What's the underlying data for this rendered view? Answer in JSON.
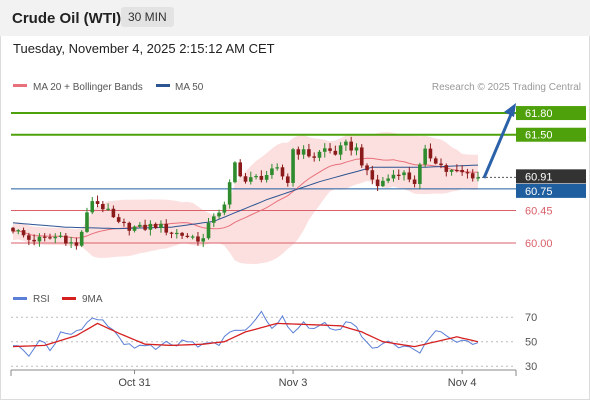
{
  "header": {
    "instrument": "Crude Oil (WTI)",
    "timeframe": "30 MIN"
  },
  "timestamp": "Tuesday, November 4, 2025 2:15:12 AM CET",
  "source": "Research © 2025 Trading Central",
  "colors": {
    "bull": "#2e8b2e",
    "bear": "#8b1a1a",
    "ma20": "#e8707a",
    "band": "#fbd7d7",
    "ma50": "#2c5592",
    "resistance": "#4ea10a",
    "support": "#d9606a",
    "pivot": "#1f5e9f",
    "current": "#333333",
    "rsi": "#5b7fd6",
    "rsi_ma": "#d62020",
    "arrow": "#2a61a8"
  },
  "chart_data": [
    {
      "type": "candlestick",
      "legend": [
        {
          "name": "MA 20 + Bollinger Bands",
          "color": "#e8707a"
        },
        {
          "name": "MA 50",
          "color": "#2c5592"
        }
      ],
      "x_ticks": [
        {
          "label": "Oct 31",
          "index": 23
        },
        {
          "label": "Nov 3",
          "index": 53
        },
        {
          "label": "Nov 4",
          "index": 85
        }
      ],
      "ylim": [
        59.35,
        62.05
      ],
      "levels": [
        {
          "label": "61.80",
          "value": 61.8,
          "kind": "resistance"
        },
        {
          "label": "61.50",
          "value": 61.5,
          "kind": "resistance"
        },
        {
          "label": "60.91",
          "value": 60.91,
          "kind": "current"
        },
        {
          "label": "60.75",
          "value": 60.75,
          "kind": "pivot"
        },
        {
          "label": "60.45",
          "value": 60.45,
          "kind": "support"
        },
        {
          "label": "60.00",
          "value": 60.0,
          "kind": "support"
        }
      ],
      "close_anchors": [
        [
          0,
          60.2
        ],
        [
          3,
          60.05
        ],
        [
          6,
          60.05
        ],
        [
          9,
          60.1
        ],
        [
          12,
          59.95
        ],
        [
          15,
          60.6
        ],
        [
          17,
          60.5
        ],
        [
          20,
          60.25
        ],
        [
          24,
          60.2
        ],
        [
          27,
          60.25
        ],
        [
          30,
          60.15
        ],
        [
          33,
          60.1
        ],
        [
          36,
          60.05
        ],
        [
          38,
          60.4
        ],
        [
          40,
          60.5
        ],
        [
          42,
          61.1
        ],
        [
          44,
          60.85
        ],
        [
          46,
          60.9
        ],
        [
          48,
          60.95
        ],
        [
          50,
          61.0
        ],
        [
          52,
          60.85
        ],
        [
          53,
          61.3
        ],
        [
          55,
          61.25
        ],
        [
          57,
          61.2
        ],
        [
          59,
          61.3
        ],
        [
          61,
          61.25
        ],
        [
          63,
          61.35
        ],
        [
          65,
          61.3
        ],
        [
          67,
          60.95
        ],
        [
          69,
          60.8
        ],
        [
          71,
          60.9
        ],
        [
          73,
          61.0
        ],
        [
          75,
          60.9
        ],
        [
          76,
          60.85
        ],
        [
          78,
          61.25
        ],
        [
          80,
          61.15
        ],
        [
          82,
          61.0
        ],
        [
          84,
          60.98
        ],
        [
          87,
          60.94
        ],
        [
          88,
          60.91
        ]
      ],
      "ma50_anchors": [
        [
          0,
          60.28
        ],
        [
          10,
          60.22
        ],
        [
          20,
          60.2
        ],
        [
          30,
          60.22
        ],
        [
          38,
          60.3
        ],
        [
          48,
          60.6
        ],
        [
          58,
          60.85
        ],
        [
          68,
          61.05
        ],
        [
          78,
          61.05
        ],
        [
          88,
          61.08
        ]
      ]
    },
    {
      "type": "line",
      "legend": [
        {
          "name": "RSI",
          "color": "#5b7fd6"
        },
        {
          "name": "9MA",
          "color": "#d62020"
        }
      ],
      "y_ticks": [
        70,
        50,
        30
      ],
      "ylim": [
        22,
        80
      ],
      "rsi_anchors": [
        [
          0,
          48
        ],
        [
          3,
          40
        ],
        [
          5,
          52
        ],
        [
          7,
          43
        ],
        [
          9,
          58
        ],
        [
          11,
          55
        ],
        [
          13,
          62
        ],
        [
          15,
          70
        ],
        [
          17,
          68
        ],
        [
          19,
          58
        ],
        [
          21,
          48
        ],
        [
          23,
          45
        ],
        [
          25,
          47
        ],
        [
          27,
          44
        ],
        [
          29,
          50
        ],
        [
          31,
          47
        ],
        [
          33,
          52
        ],
        [
          35,
          45
        ],
        [
          37,
          50
        ],
        [
          39,
          48
        ],
        [
          41,
          58
        ],
        [
          43,
          60
        ],
        [
          45,
          62
        ],
        [
          47,
          74
        ],
        [
          49,
          62
        ],
        [
          51,
          70
        ],
        [
          53,
          58
        ],
        [
          55,
          66
        ],
        [
          57,
          60
        ],
        [
          59,
          64
        ],
        [
          61,
          58
        ],
        [
          63,
          66
        ],
        [
          65,
          62
        ],
        [
          67,
          48
        ],
        [
          69,
          44
        ],
        [
          71,
          52
        ],
        [
          73,
          44
        ],
        [
          75,
          47
        ],
        [
          77,
          42
        ],
        [
          79,
          55
        ],
        [
          81,
          60
        ],
        [
          83,
          52
        ],
        [
          85,
          50
        ],
        [
          88,
          48
        ]
      ],
      "ma_anchors": [
        [
          0,
          46
        ],
        [
          6,
          47
        ],
        [
          12,
          55
        ],
        [
          16,
          65
        ],
        [
          20,
          57
        ],
        [
          25,
          48
        ],
        [
          30,
          47
        ],
        [
          36,
          48
        ],
        [
          40,
          50
        ],
        [
          44,
          58
        ],
        [
          50,
          65
        ],
        [
          56,
          64
        ],
        [
          62,
          63
        ],
        [
          66,
          58
        ],
        [
          70,
          50
        ],
        [
          76,
          46
        ],
        [
          80,
          50
        ],
        [
          84,
          54
        ],
        [
          88,
          50
        ]
      ]
    }
  ]
}
